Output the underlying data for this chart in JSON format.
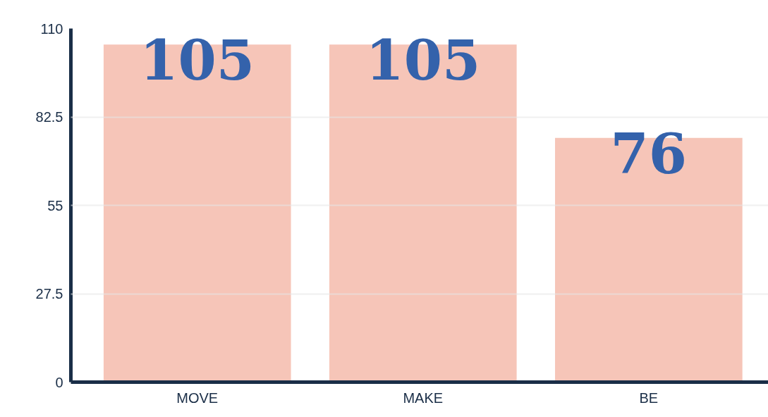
{
  "chart_data": {
    "type": "bar",
    "categories": [
      "MOVE",
      "MAKE",
      "BE"
    ],
    "values": [
      105,
      105,
      76
    ],
    "color": "#f6c5b8",
    "data_labels": true,
    "ylim": [
      0,
      110
    ],
    "yticks": [
      0,
      27.5,
      55,
      82.5,
      110
    ],
    "grid": "y"
  }
}
